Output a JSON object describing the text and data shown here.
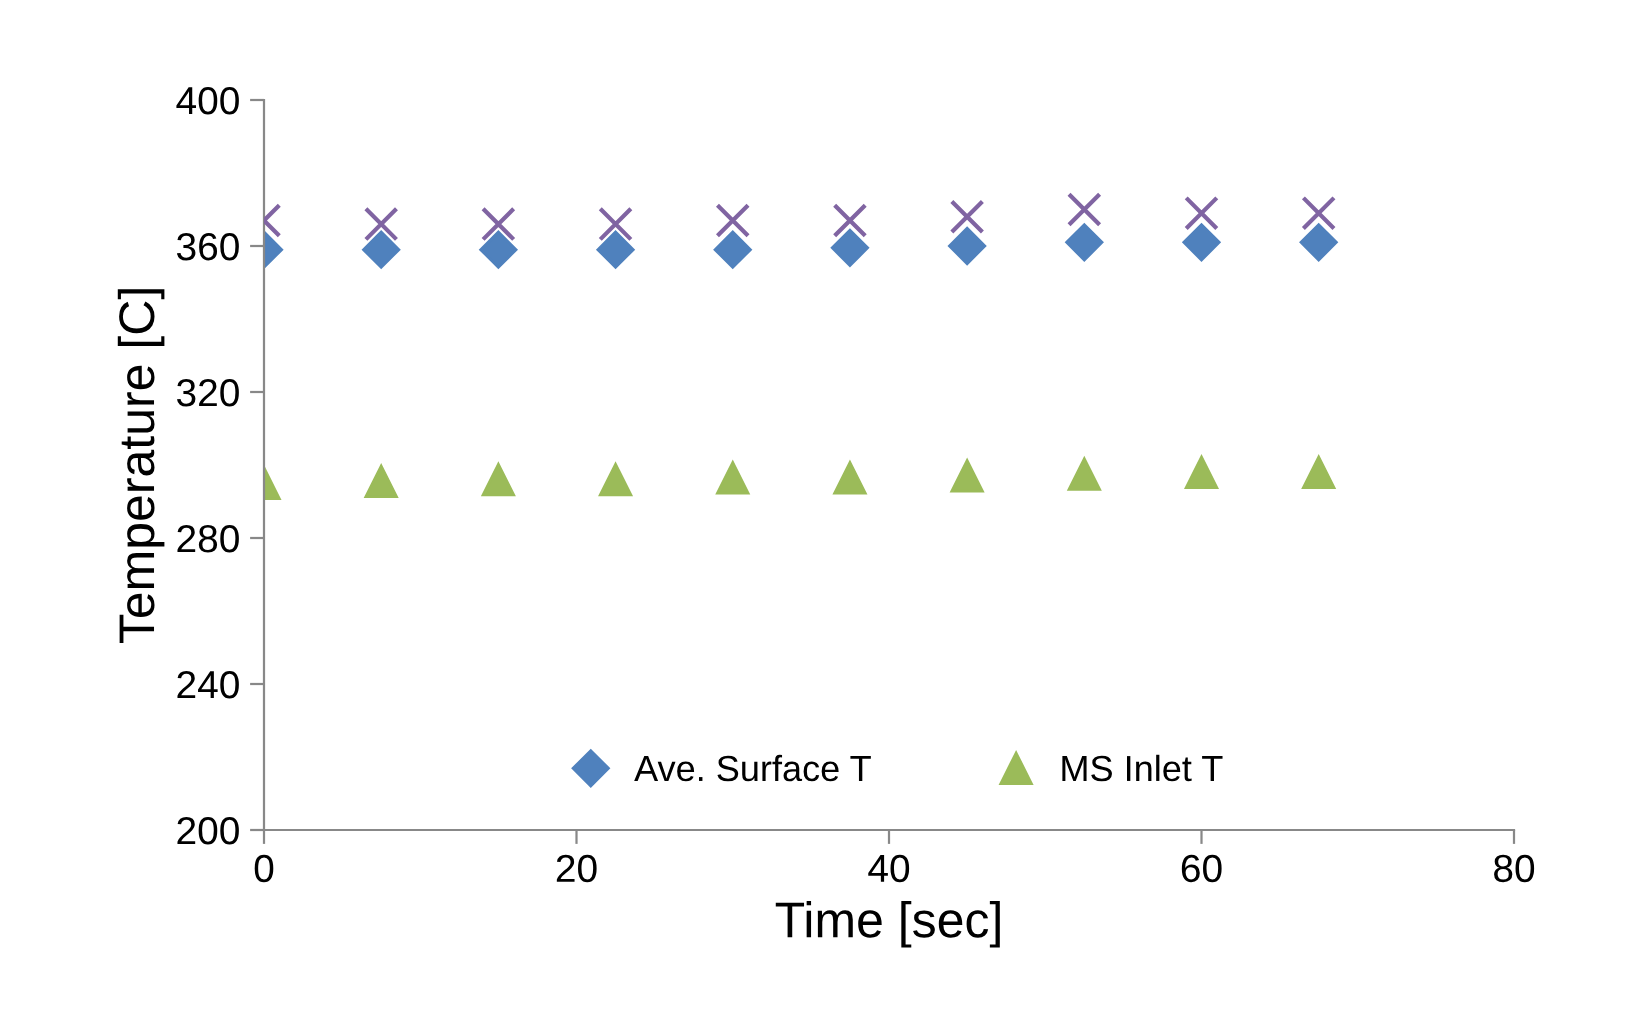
{
  "chart_data": {
    "type": "scatter",
    "xlabel": "Time [sec]",
    "ylabel": "Temperature [C]",
    "x": [
      0,
      7.5,
      15,
      22.5,
      30,
      37.5,
      45,
      52.5,
      60,
      67.5
    ],
    "series": [
      {
        "name": "Ave. Surface T",
        "color": "#4f81bd",
        "marker": "diamond",
        "values": [
          359,
          359,
          359,
          359,
          359,
          359.5,
          360,
          361,
          361,
          361
        ]
      },
      {
        "name": "MS Inlet T",
        "color": "#9bbb59",
        "marker": "triangle",
        "values": [
          295,
          295.5,
          296,
          296,
          296.5,
          296.5,
          297,
          297.5,
          298,
          298
        ]
      },
      {
        "color": "#8064a2",
        "marker": "cross",
        "values": [
          367,
          366,
          366,
          366,
          367,
          367,
          368,
          370,
          369,
          369
        ]
      }
    ],
    "xlim": [
      0,
      80
    ],
    "xticks": [
      0,
      20,
      40,
      60,
      80
    ],
    "ylim": [
      200,
      400
    ],
    "yticks": [
      200,
      240,
      280,
      320,
      360,
      400
    ],
    "grid": false,
    "legend": "bottom"
  }
}
